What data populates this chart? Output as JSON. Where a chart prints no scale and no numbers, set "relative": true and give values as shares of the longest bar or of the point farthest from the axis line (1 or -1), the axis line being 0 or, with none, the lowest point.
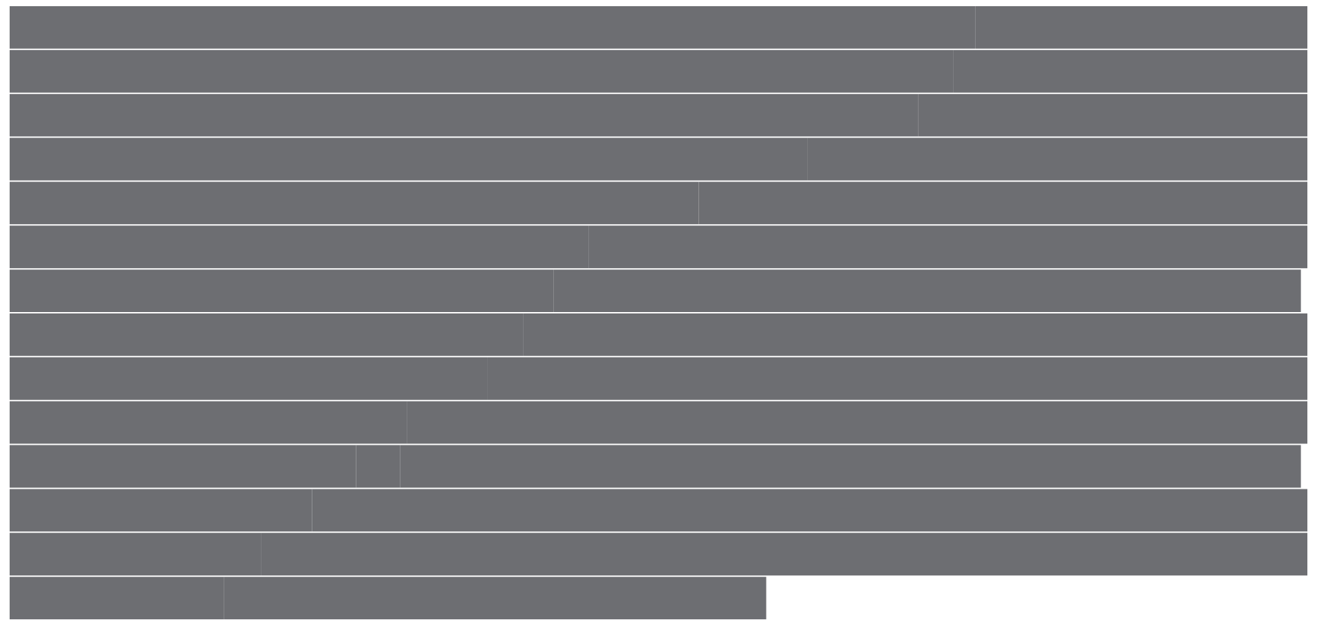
{
  "chart_data": {
    "type": "bar",
    "orientation": "horizontal",
    "stacked": true,
    "relative": true,
    "categories": [
      null,
      null,
      null,
      null,
      null,
      null,
      null,
      null,
      null,
      null,
      null,
      null,
      null,
      null
    ],
    "series": [
      {
        "color": "#6d6e72",
        "values": [
          0.744,
          0.727,
          0.7,
          0.615,
          0.531,
          0.446,
          0.419,
          0.396,
          0.368,
          0.306,
          0.267,
          0.233,
          0.194,
          0.165
        ]
      },
      {
        "color": "#6d6e72",
        "values": [
          0.256,
          0.273,
          0.3,
          0.385,
          0.469,
          0.554,
          0.576,
          0.604,
          0.632,
          0.694,
          0.034,
          0.767,
          0.806,
          0.418
        ]
      },
      {
        "color": "#6d6e72",
        "values": [
          0,
          0,
          0,
          0,
          0,
          0,
          0,
          0,
          0,
          0,
          0.694,
          0,
          0,
          0
        ]
      }
    ]
  }
}
